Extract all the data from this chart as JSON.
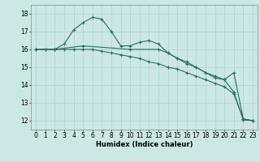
{
  "xlabel": "Humidex (Indice chaleur)",
  "xlim": [
    -0.5,
    23.5
  ],
  "ylim": [
    11.5,
    18.5
  ],
  "yticks": [
    12,
    13,
    14,
    15,
    16,
    17,
    18
  ],
  "xticks": [
    0,
    1,
    2,
    3,
    4,
    5,
    6,
    7,
    8,
    9,
    10,
    11,
    12,
    13,
    14,
    15,
    16,
    17,
    18,
    19,
    20,
    21,
    22,
    23
  ],
  "bg_color": "#cce8e4",
  "grid_color": "#aad4cc",
  "line_color": "#2a6e64",
  "line1_x": [
    0,
    1,
    2,
    3,
    4,
    5,
    6,
    7,
    8,
    9,
    10,
    11,
    12,
    13,
    14,
    15,
    16,
    17,
    18,
    19,
    20,
    21,
    22,
    23
  ],
  "line1_y": [
    16.0,
    16.0,
    16.0,
    16.3,
    17.1,
    17.5,
    17.8,
    17.7,
    17.0,
    16.2,
    16.2,
    16.4,
    16.5,
    16.3,
    15.8,
    15.5,
    15.3,
    15.0,
    14.7,
    14.4,
    14.3,
    13.6,
    12.05,
    12.0
  ],
  "line2_x": [
    0,
    1,
    2,
    3,
    4,
    5,
    6,
    7,
    8,
    9,
    10,
    11,
    12,
    13,
    14,
    15,
    16,
    17,
    18,
    19,
    20,
    21,
    22,
    23
  ],
  "line2_y": [
    16.0,
    16.0,
    16.0,
    16.0,
    16.0,
    16.0,
    16.0,
    15.9,
    15.8,
    15.7,
    15.6,
    15.5,
    15.3,
    15.2,
    15.0,
    14.9,
    14.7,
    14.5,
    14.3,
    14.1,
    13.9,
    13.5,
    12.1,
    12.0
  ],
  "line3_x": [
    0,
    2,
    5,
    10,
    13,
    14,
    15,
    16,
    17,
    18,
    19,
    20,
    21,
    22,
    23
  ],
  "line3_y": [
    16.0,
    16.0,
    16.2,
    16.0,
    16.0,
    15.8,
    15.5,
    15.2,
    15.0,
    14.7,
    14.5,
    14.3,
    14.7,
    12.1,
    12.0
  ],
  "marker_size": 2.5,
  "line_width": 0.8,
  "tick_fontsize": 5.5,
  "xlabel_fontsize": 6.0
}
